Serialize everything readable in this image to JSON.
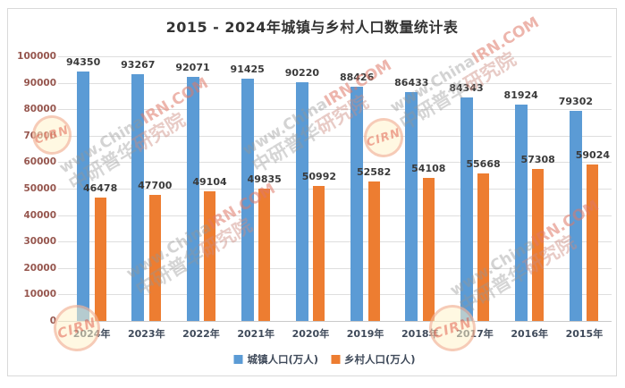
{
  "chart_data": {
    "type": "bar",
    "title": "2015 - 2024年城镇与乡村人口数量统计表",
    "categories": [
      "2024年",
      "2023年",
      "2022年",
      "2021年",
      "2020年",
      "2019年",
      "2018年",
      "2017年",
      "2016年",
      "2015年"
    ],
    "series": [
      {
        "name": "城镇人口(万人)",
        "color": "#5B9BD5",
        "values": [
          94350,
          93267,
          92071,
          91425,
          90220,
          88426,
          86433,
          84343,
          81924,
          79302
        ]
      },
      {
        "name": "乡村人口(万人)",
        "color": "#ED7D31",
        "values": [
          46478,
          47700,
          49104,
          49835,
          50992,
          52582,
          54108,
          55668,
          57308,
          59024
        ]
      }
    ],
    "ylim": [
      0,
      100000
    ],
    "yticks": [
      0,
      10000,
      20000,
      30000,
      40000,
      50000,
      60000,
      70000,
      80000,
      90000,
      100000
    ],
    "grid": true,
    "legend_position": "bottom",
    "value_labels": true
  },
  "watermark": {
    "url_prefix": "www.China",
    "url_suffix": "IRN.COM",
    "cn_prefix": "中研普华",
    "cn_suffix": "研究院",
    "stamp_text": "CIRN"
  },
  "colors": {
    "urban_bar": "#5B9BD5",
    "rural_bar": "#ED7D31",
    "grid_line": "#DEDEDE",
    "axis_line": "#C9C9C9",
    "y_tick_label": "#96564E",
    "x_tick_label": "#3F4A5A",
    "value_label": "#3A3A3A",
    "title": "#333333",
    "frame_border": "#D9D9D9"
  }
}
